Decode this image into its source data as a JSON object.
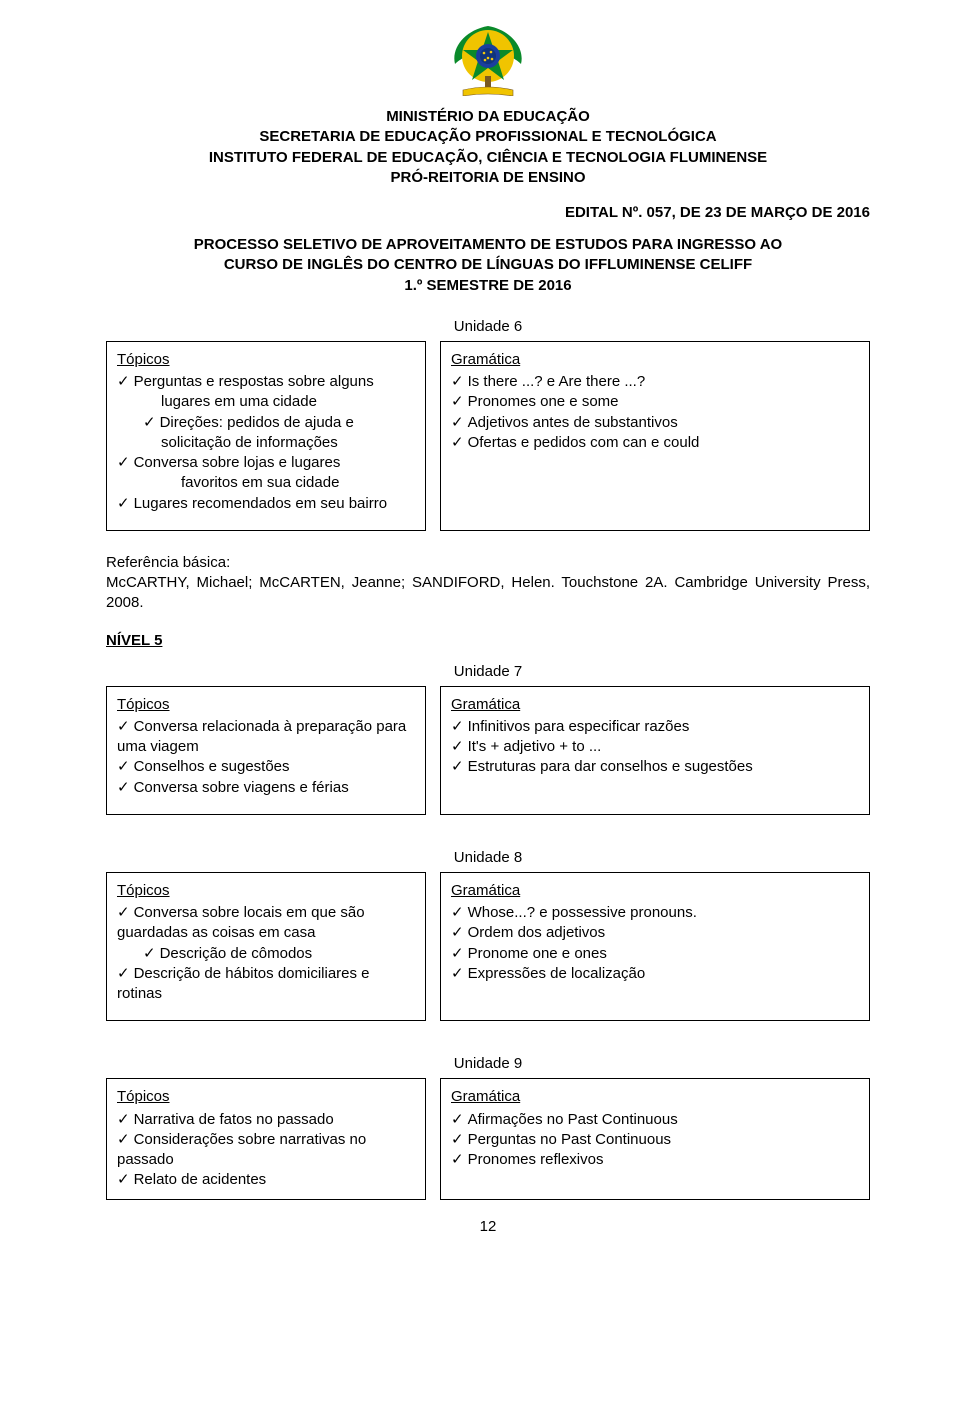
{
  "header": {
    "line1": "MINISTÉRIO DA EDUCAÇÃO",
    "line2": "SECRETARIA DE EDUCAÇÃO PROFISSIONAL E TECNOLÓGICA",
    "line3": "INSTITUTO FEDERAL DE EDUCAÇÃO, CIÊNCIA E TECNOLOGIA FLUMINENSE",
    "line4": "PRÓ-REITORIA DE ENSINO"
  },
  "edital": "EDITAL Nº. 057, DE 23 DE MARÇO DE 2016",
  "process": {
    "line1": "PROCESSO SELETIVO DE APROVEITAMENTO DE ESTUDOS PARA INGRESSO AO",
    "line2": "CURSO DE INGLÊS DO CENTRO DE LÍNGUAS DO IFFLUMINENSE CELIFF",
    "line3": "1.º SEMESTRE DE 2016"
  },
  "labels": {
    "topicos": "Tópicos",
    "gramatica": "Gramática",
    "ref_basica": "Referência básica:"
  },
  "unidade6": {
    "title": "Unidade 6",
    "topicos": [
      {
        "text": "Perguntas e respostas sobre alguns",
        "indent": 0
      },
      {
        "text": "lugares em uma cidade",
        "indent": 2,
        "plain": true
      },
      {
        "text": "Direções: pedidos de ajuda e",
        "indent": 1
      },
      {
        "text": "solicitação de informações",
        "indent": 2,
        "plain": true
      },
      {
        "text": "Conversa sobre lojas e lugares",
        "indent": 0
      },
      {
        "text": "favoritos em sua cidade",
        "indent": 3,
        "plain": true
      },
      {
        "text": " Lugares recomendados em seu bairro",
        "indent": 0
      }
    ],
    "gramatica": [
      {
        "text": "Is there ...? e Are there ...?"
      },
      {
        "text": "Pronomes one e some"
      },
      {
        "text": "Adjetivos antes de substantivos"
      },
      {
        "text": "Ofertas e pedidos com can e could"
      }
    ]
  },
  "ref_text": "McCARTHY, Michael; McCARTEN, Jeanne; SANDIFORD, Helen. Touchstone 2A. Cambridge University Press, 2008.",
  "nivel5": "NÍVEL 5",
  "unidade7": {
    "title": "Unidade 7",
    "topicos": [
      {
        "text": "Conversa relacionada à preparação para",
        "indent": 0
      },
      {
        "text": "uma viagem",
        "indent": 0,
        "plain": true
      },
      {
        "text": "Conselhos e sugestões",
        "indent": 0
      },
      {
        "text": "Conversa sobre viagens e férias",
        "indent": 0
      }
    ],
    "gramatica": [
      {
        "text": "Infinitivos para especificar razões"
      },
      {
        "text": "It's + adjetivo + to ..."
      },
      {
        "text": "Estruturas para dar conselhos e sugestões"
      }
    ]
  },
  "unidade8": {
    "title": "Unidade 8",
    "topicos": [
      {
        "text": "Conversa sobre locais em que são",
        "indent": 0
      },
      {
        "text": "guardadas as coisas em casa",
        "indent": 0,
        "plain": true
      },
      {
        "text": "Descrição de cômodos",
        "indent": 1
      },
      {
        "text": "Descrição de hábitos domiciliares e",
        "indent": 0
      },
      {
        "text": "rotinas",
        "indent": 0,
        "plain": true
      }
    ],
    "gramatica": [
      {
        "text": "Whose...? e possessive pronouns."
      },
      {
        "text": "Ordem dos adjetivos"
      },
      {
        "text": "Pronome one e ones"
      },
      {
        "text": "Expressões de localização"
      }
    ]
  },
  "unidade9": {
    "title": "Unidade 9",
    "topicos": [
      {
        "text": "Narrativa de fatos no passado",
        "indent": 0
      },
      {
        "text": "Considerações sobre narrativas no",
        "indent": 0
      },
      {
        "text": "passado",
        "indent": 0,
        "plain": true
      },
      {
        "text": "Relato de acidentes",
        "indent": 0
      }
    ],
    "gramatica": [
      {
        "text": "Afirmações no Past Continuous"
      },
      {
        "text": "Perguntas no Past Continuous"
      },
      {
        "text": "Pronomes reflexivos"
      }
    ]
  },
  "page_number": "12",
  "emblem_colors": {
    "blue": "#1a3e9e",
    "yellow": "#f0c400",
    "green": "#0a8a2a",
    "brown": "#7a5a22"
  }
}
